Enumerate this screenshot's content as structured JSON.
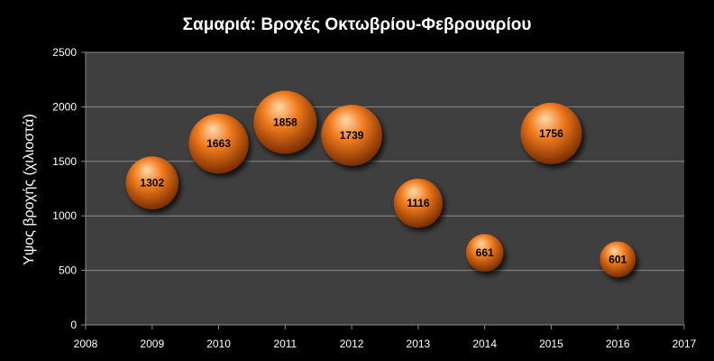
{
  "chart_data": {
    "type": "bubble",
    "title": "Σαμαριά: Βροχές Οκτωβρίου-Φεβρουαρίου",
    "xlabel": "",
    "ylabel": "Υψος βροχής (χιλιοστά)",
    "xlim": [
      2008,
      2017
    ],
    "ylim": [
      0,
      2500
    ],
    "x_ticks": [
      2008,
      2009,
      2010,
      2011,
      2012,
      2013,
      2014,
      2015,
      2016,
      2017
    ],
    "y_ticks": [
      0,
      500,
      1000,
      1500,
      2000,
      2500
    ],
    "grid": true,
    "legend": "none",
    "series": [
      {
        "points": [
          {
            "x": 2009,
            "y": 1302,
            "label": "1302"
          },
          {
            "x": 2010,
            "y": 1663,
            "label": "1663"
          },
          {
            "x": 2011,
            "y": 1858,
            "label": "1858"
          },
          {
            "x": 2012,
            "y": 1739,
            "label": "1739"
          },
          {
            "x": 2013,
            "y": 1116,
            "label": "1116"
          },
          {
            "x": 2014,
            "y": 661,
            "label": "661"
          },
          {
            "x": 2015,
            "y": 1756,
            "label": "1756"
          },
          {
            "x": 2016,
            "y": 601,
            "label": "601"
          }
        ]
      }
    ],
    "colors": {
      "background": "#000000",
      "plot_area": "#3f3f3f",
      "gridline": "#8a8a8a",
      "bubble_light": "#ffd9a8",
      "bubble_mid": "#f07a1e",
      "bubble_dark": "#7a2e00",
      "text": "#ffffff",
      "data_label": "#000000"
    }
  }
}
